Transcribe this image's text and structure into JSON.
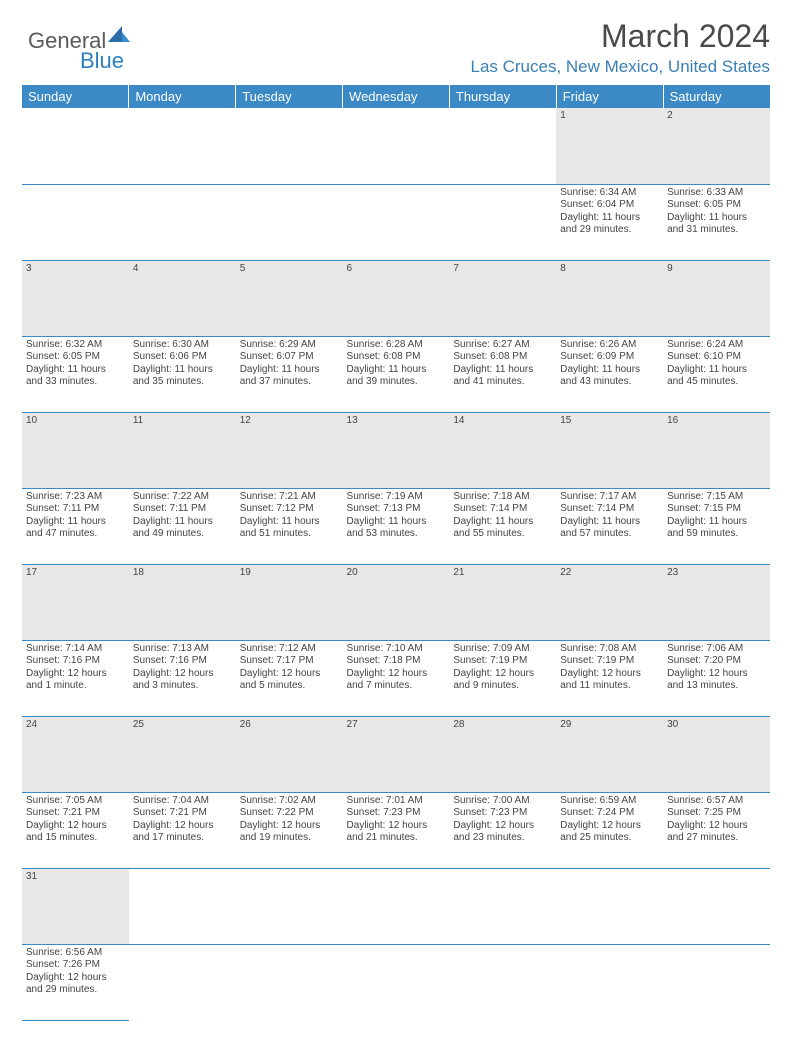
{
  "logo": {
    "part1": "General",
    "part2": "Blue"
  },
  "header": {
    "title": "March 2024",
    "location": "Las Cruces, New Mexico, United States"
  },
  "colors": {
    "header_bg": "#3b89c5",
    "header_text": "#ffffff",
    "daynum_bg": "#e7e7e7",
    "border": "#3b89c5",
    "location_text": "#3a7fb5",
    "title_text": "#4a4a4a"
  },
  "weekdays": [
    "Sunday",
    "Monday",
    "Tuesday",
    "Wednesday",
    "Thursday",
    "Friday",
    "Saturday"
  ],
  "weeks": [
    [
      null,
      null,
      null,
      null,
      null,
      {
        "n": "1",
        "sr": "Sunrise: 6:34 AM",
        "ss": "Sunset: 6:04 PM",
        "d1": "Daylight: 11 hours",
        "d2": "and 29 minutes."
      },
      {
        "n": "2",
        "sr": "Sunrise: 6:33 AM",
        "ss": "Sunset: 6:05 PM",
        "d1": "Daylight: 11 hours",
        "d2": "and 31 minutes."
      }
    ],
    [
      {
        "n": "3",
        "sr": "Sunrise: 6:32 AM",
        "ss": "Sunset: 6:05 PM",
        "d1": "Daylight: 11 hours",
        "d2": "and 33 minutes."
      },
      {
        "n": "4",
        "sr": "Sunrise: 6:30 AM",
        "ss": "Sunset: 6:06 PM",
        "d1": "Daylight: 11 hours",
        "d2": "and 35 minutes."
      },
      {
        "n": "5",
        "sr": "Sunrise: 6:29 AM",
        "ss": "Sunset: 6:07 PM",
        "d1": "Daylight: 11 hours",
        "d2": "and 37 minutes."
      },
      {
        "n": "6",
        "sr": "Sunrise: 6:28 AM",
        "ss": "Sunset: 6:08 PM",
        "d1": "Daylight: 11 hours",
        "d2": "and 39 minutes."
      },
      {
        "n": "7",
        "sr": "Sunrise: 6:27 AM",
        "ss": "Sunset: 6:08 PM",
        "d1": "Daylight: 11 hours",
        "d2": "and 41 minutes."
      },
      {
        "n": "8",
        "sr": "Sunrise: 6:26 AM",
        "ss": "Sunset: 6:09 PM",
        "d1": "Daylight: 11 hours",
        "d2": "and 43 minutes."
      },
      {
        "n": "9",
        "sr": "Sunrise: 6:24 AM",
        "ss": "Sunset: 6:10 PM",
        "d1": "Daylight: 11 hours",
        "d2": "and 45 minutes."
      }
    ],
    [
      {
        "n": "10",
        "sr": "Sunrise: 7:23 AM",
        "ss": "Sunset: 7:11 PM",
        "d1": "Daylight: 11 hours",
        "d2": "and 47 minutes."
      },
      {
        "n": "11",
        "sr": "Sunrise: 7:22 AM",
        "ss": "Sunset: 7:11 PM",
        "d1": "Daylight: 11 hours",
        "d2": "and 49 minutes."
      },
      {
        "n": "12",
        "sr": "Sunrise: 7:21 AM",
        "ss": "Sunset: 7:12 PM",
        "d1": "Daylight: 11 hours",
        "d2": "and 51 minutes."
      },
      {
        "n": "13",
        "sr": "Sunrise: 7:19 AM",
        "ss": "Sunset: 7:13 PM",
        "d1": "Daylight: 11 hours",
        "d2": "and 53 minutes."
      },
      {
        "n": "14",
        "sr": "Sunrise: 7:18 AM",
        "ss": "Sunset: 7:14 PM",
        "d1": "Daylight: 11 hours",
        "d2": "and 55 minutes."
      },
      {
        "n": "15",
        "sr": "Sunrise: 7:17 AM",
        "ss": "Sunset: 7:14 PM",
        "d1": "Daylight: 11 hours",
        "d2": "and 57 minutes."
      },
      {
        "n": "16",
        "sr": "Sunrise: 7:15 AM",
        "ss": "Sunset: 7:15 PM",
        "d1": "Daylight: 11 hours",
        "d2": "and 59 minutes."
      }
    ],
    [
      {
        "n": "17",
        "sr": "Sunrise: 7:14 AM",
        "ss": "Sunset: 7:16 PM",
        "d1": "Daylight: 12 hours",
        "d2": "and 1 minute."
      },
      {
        "n": "18",
        "sr": "Sunrise: 7:13 AM",
        "ss": "Sunset: 7:16 PM",
        "d1": "Daylight: 12 hours",
        "d2": "and 3 minutes."
      },
      {
        "n": "19",
        "sr": "Sunrise: 7:12 AM",
        "ss": "Sunset: 7:17 PM",
        "d1": "Daylight: 12 hours",
        "d2": "and 5 minutes."
      },
      {
        "n": "20",
        "sr": "Sunrise: 7:10 AM",
        "ss": "Sunset: 7:18 PM",
        "d1": "Daylight: 12 hours",
        "d2": "and 7 minutes."
      },
      {
        "n": "21",
        "sr": "Sunrise: 7:09 AM",
        "ss": "Sunset: 7:19 PM",
        "d1": "Daylight: 12 hours",
        "d2": "and 9 minutes."
      },
      {
        "n": "22",
        "sr": "Sunrise: 7:08 AM",
        "ss": "Sunset: 7:19 PM",
        "d1": "Daylight: 12 hours",
        "d2": "and 11 minutes."
      },
      {
        "n": "23",
        "sr": "Sunrise: 7:06 AM",
        "ss": "Sunset: 7:20 PM",
        "d1": "Daylight: 12 hours",
        "d2": "and 13 minutes."
      }
    ],
    [
      {
        "n": "24",
        "sr": "Sunrise: 7:05 AM",
        "ss": "Sunset: 7:21 PM",
        "d1": "Daylight: 12 hours",
        "d2": "and 15 minutes."
      },
      {
        "n": "25",
        "sr": "Sunrise: 7:04 AM",
        "ss": "Sunset: 7:21 PM",
        "d1": "Daylight: 12 hours",
        "d2": "and 17 minutes."
      },
      {
        "n": "26",
        "sr": "Sunrise: 7:02 AM",
        "ss": "Sunset: 7:22 PM",
        "d1": "Daylight: 12 hours",
        "d2": "and 19 minutes."
      },
      {
        "n": "27",
        "sr": "Sunrise: 7:01 AM",
        "ss": "Sunset: 7:23 PM",
        "d1": "Daylight: 12 hours",
        "d2": "and 21 minutes."
      },
      {
        "n": "28",
        "sr": "Sunrise: 7:00 AM",
        "ss": "Sunset: 7:23 PM",
        "d1": "Daylight: 12 hours",
        "d2": "and 23 minutes."
      },
      {
        "n": "29",
        "sr": "Sunrise: 6:59 AM",
        "ss": "Sunset: 7:24 PM",
        "d1": "Daylight: 12 hours",
        "d2": "and 25 minutes."
      },
      {
        "n": "30",
        "sr": "Sunrise: 6:57 AM",
        "ss": "Sunset: 7:25 PM",
        "d1": "Daylight: 12 hours",
        "d2": "and 27 minutes."
      }
    ],
    [
      {
        "n": "31",
        "sr": "Sunrise: 6:56 AM",
        "ss": "Sunset: 7:26 PM",
        "d1": "Daylight: 12 hours",
        "d2": "and 29 minutes."
      },
      null,
      null,
      null,
      null,
      null,
      null
    ]
  ]
}
